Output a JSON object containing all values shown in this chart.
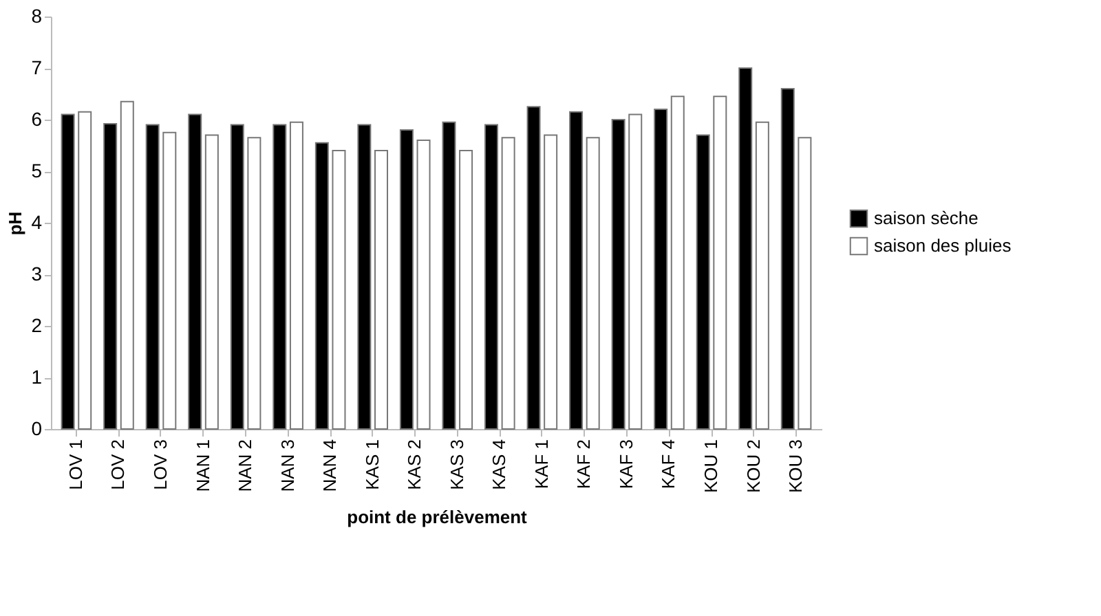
{
  "chart_data": {
    "type": "bar",
    "xlabel": "point de prélèvement",
    "ylabel": "pH",
    "categories": [
      "LOV 1",
      "LOV 2",
      "LOV 3",
      "NAN 1",
      "NAN 2",
      "NAN 3",
      "NAN 4",
      "KAS 1",
      "KAS 2",
      "KAS 3",
      "KAS 4",
      "KAF 1",
      "KAF 2",
      "KAF 3",
      "KAF 4",
      "KOU 1",
      "KOU 2",
      "KOU 3"
    ],
    "series": [
      {
        "name": "saison sèche",
        "color": "#000000",
        "values": [
          6.1,
          5.92,
          5.9,
          6.1,
          5.9,
          5.9,
          5.55,
          5.9,
          5.8,
          5.95,
          5.9,
          6.25,
          6.15,
          6.0,
          6.2,
          5.7,
          7.0,
          6.6
        ]
      },
      {
        "name": "saison des pluies",
        "color": "#ffffff",
        "values": [
          6.15,
          6.35,
          5.75,
          5.7,
          5.65,
          5.95,
          5.4,
          5.4,
          5.6,
          5.4,
          5.65,
          5.7,
          5.65,
          6.1,
          6.45,
          6.45,
          5.95,
          5.65
        ]
      }
    ],
    "ylim": [
      0,
      8
    ],
    "yticks": [
      0,
      1,
      2,
      3,
      4,
      5,
      6,
      7,
      8
    ],
    "grid": false,
    "legend": "right"
  }
}
